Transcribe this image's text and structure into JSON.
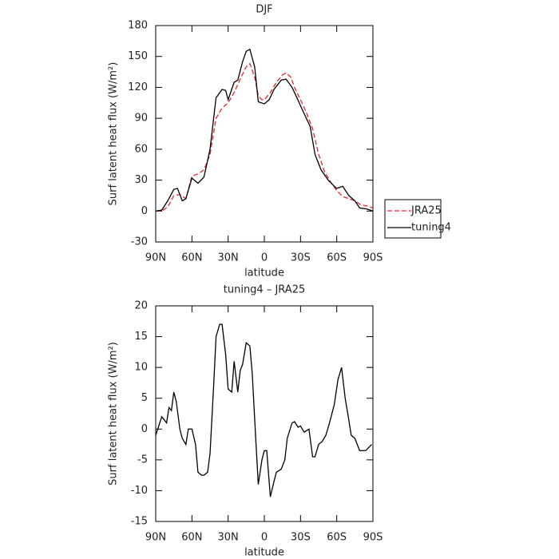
{
  "chart_data": [
    {
      "type": "line",
      "title": "DJF",
      "xlabel": "latitude",
      "ylabel": "Surf latent heat flux (W/m²)",
      "xlim": [
        90,
        -90
      ],
      "ylim": [
        -30,
        180
      ],
      "xticks": [
        {
          "value": 90,
          "label": "90N"
        },
        {
          "value": 60,
          "label": "60N"
        },
        {
          "value": 30,
          "label": "30N"
        },
        0,
        {
          "value": -30,
          "label": "30S"
        },
        {
          "value": -60,
          "label": "60S"
        },
        {
          "value": -90,
          "label": "90S"
        }
      ],
      "yticks": [
        -30,
        0,
        30,
        60,
        90,
        120,
        150,
        180
      ],
      "legend": "right",
      "series": [
        {
          "name": "JRA25",
          "color": "#e8262a",
          "dash": true,
          "x": [
            90,
            85,
            80,
            75,
            70,
            65,
            60,
            55,
            50,
            45,
            40,
            35,
            30,
            25,
            20,
            15,
            12,
            8,
            5,
            2,
            0,
            -5,
            -10,
            -15,
            -18,
            -22,
            -25,
            -30,
            -35,
            -40,
            -45,
            -50,
            -55,
            -60,
            -65,
            -70,
            -75,
            -80,
            -85,
            -90
          ],
          "values": [
            0,
            0,
            4,
            15,
            16,
            12,
            34,
            36,
            40,
            55,
            90,
            100,
            105,
            115,
            128,
            140,
            143,
            130,
            112,
            108,
            108,
            115,
            125,
            132,
            134,
            130,
            120,
            108,
            95,
            80,
            55,
            38,
            28,
            20,
            14,
            12,
            10,
            6,
            5,
            3
          ]
        },
        {
          "name": "tuning4",
          "color": "#000000",
          "dash": false,
          "x": [
            90,
            85,
            80,
            75,
            72,
            68,
            65,
            60,
            55,
            50,
            45,
            40,
            35,
            32,
            30,
            25,
            22,
            18,
            15,
            12,
            8,
            5,
            0,
            -4,
            -8,
            -14,
            -18,
            -23,
            -27,
            -32,
            -38,
            -42,
            -47,
            -53,
            -58,
            -60,
            -65,
            -70,
            -75,
            -79,
            -85,
            -90
          ],
          "values": [
            0,
            1,
            10,
            21,
            22,
            10,
            12,
            32,
            27,
            33,
            60,
            110,
            118,
            117,
            108,
            125,
            127,
            145,
            155,
            157,
            140,
            106,
            104,
            108,
            118,
            127,
            128,
            120,
            110,
            97,
            82,
            55,
            40,
            30,
            24,
            22,
            24,
            15,
            10,
            3,
            2,
            0
          ]
        }
      ]
    },
    {
      "type": "line",
      "title": "tuning4 – JRA25",
      "xlabel": "latitude",
      "ylabel": "Surf latent heat flux (W/m²)",
      "xlim": [
        90,
        -90
      ],
      "ylim": [
        -15,
        20
      ],
      "xticks": [
        {
          "value": 90,
          "label": "90N"
        },
        {
          "value": 60,
          "label": "60N"
        },
        {
          "value": 30,
          "label": "30N"
        },
        0,
        {
          "value": -30,
          "label": "30S"
        },
        {
          "value": -60,
          "label": "60S"
        },
        {
          "value": -90,
          "label": "90S"
        }
      ],
      "yticks": [
        -15,
        -10,
        -5,
        0,
        5,
        10,
        15,
        20
      ],
      "series": [
        {
          "color": "#000000",
          "dash": false,
          "x": [
            90,
            85,
            81,
            79,
            77,
            75,
            73,
            70,
            68,
            65,
            63,
            60,
            57,
            55,
            52,
            50,
            47,
            45,
            42,
            40,
            37,
            35,
            32,
            30,
            27,
            25,
            22,
            20,
            18,
            15,
            12,
            10,
            7,
            5,
            2,
            0,
            -2,
            -5,
            -8,
            -10,
            -14,
            -17,
            -19,
            -23,
            -25,
            -28,
            -30,
            -33,
            -37,
            -40,
            -42,
            -45,
            -48,
            -51,
            -54,
            -58,
            -61,
            -64,
            -67,
            -70,
            -72,
            -75,
            -79,
            -84,
            -89
          ],
          "values": [
            -1,
            2,
            1,
            3.5,
            3,
            6,
            4.5,
            0,
            -1.5,
            -2.5,
            0,
            0,
            -2.5,
            -7,
            -7.5,
            -7.5,
            -7,
            -4,
            7,
            15,
            17,
            17,
            12,
            6.5,
            6,
            11,
            6,
            9.5,
            10.5,
            14,
            13.5,
            9,
            -2,
            -9,
            -5,
            -3.5,
            -3.5,
            -11,
            -8.5,
            -7,
            -6.5,
            -5,
            -1.5,
            1,
            1.2,
            0.3,
            0.5,
            -0.5,
            0,
            -4.5,
            -4.5,
            -2.5,
            -2,
            -1,
            1,
            4,
            8,
            10,
            5,
            1.5,
            -1,
            -1.5,
            -3.5,
            -3.5,
            -2.5
          ]
        }
      ]
    }
  ]
}
